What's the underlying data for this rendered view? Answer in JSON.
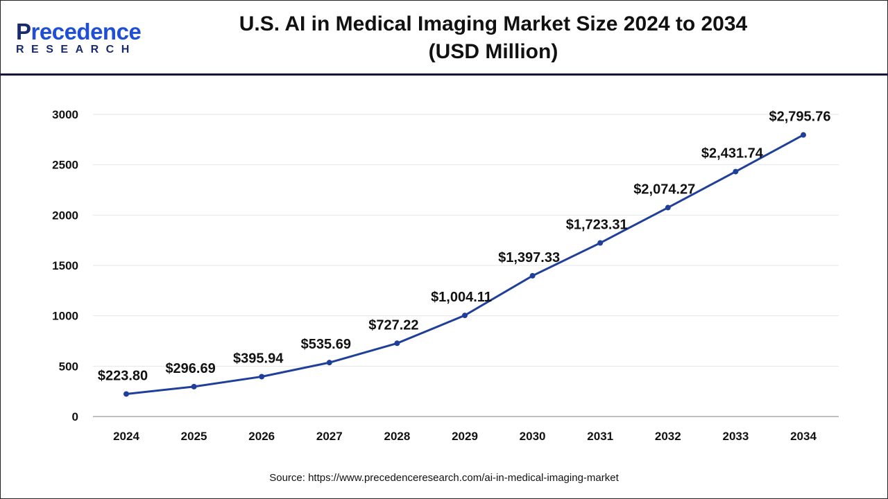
{
  "logo": {
    "line1_a": "P",
    "line1_b": "recedence",
    "line2": "RESEARCH"
  },
  "title_line1": "U.S. AI in Medical Imaging Market Size 2024 to 2034",
  "title_line2": "(USD Million)",
  "source": "Source: https://www.precedenceresearch.com/ai-in-medical-imaging-market",
  "colors": {
    "line": "#1f3f9a",
    "grid": "#e6e6e6",
    "axis": "#bfbfbf"
  },
  "chart_data": {
    "type": "line",
    "title": "U.S. AI in Medical Imaging Market Size 2024 to 2034 (USD Million)",
    "xlabel": "",
    "ylabel": "",
    "categories": [
      "2024",
      "2025",
      "2026",
      "2027",
      "2028",
      "2029",
      "2030",
      "2031",
      "2032",
      "2033",
      "2034"
    ],
    "values": [
      223.8,
      296.69,
      395.94,
      535.69,
      727.22,
      1004.11,
      1397.33,
      1723.31,
      2074.27,
      2431.74,
      2795.76
    ],
    "data_labels": [
      "$223.80",
      "$296.69",
      "$395.94",
      "$535.69",
      "$727.22",
      "$1,004.11",
      "$1,397.33",
      "$1,723.31",
      "$2,074.27",
      "$2,431.74",
      "$2,795.76"
    ],
    "yticks": [
      "0",
      "500",
      "1000",
      "1500",
      "2000",
      "2500",
      "3000"
    ],
    "ylim": [
      0,
      3000
    ],
    "grid": true,
    "legend": "none"
  }
}
